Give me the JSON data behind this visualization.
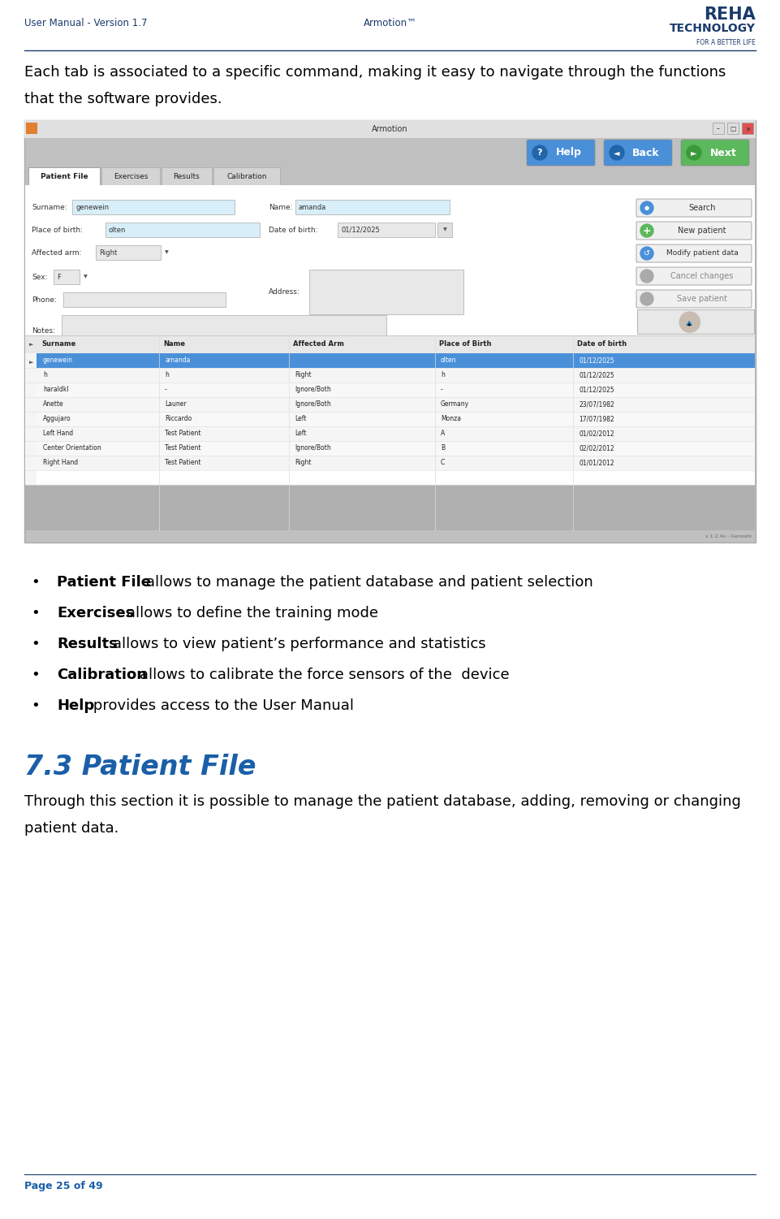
{
  "page_width": 9.61,
  "page_height": 15.01,
  "dpi": 100,
  "bg_color": "#ffffff",
  "header_left": "User Manual - Version 1.7",
  "header_center": "Armotion™",
  "header_color": "#1a3a6b",
  "logo_text1": "REHA",
  "logo_text2": "TECHNOLOGY",
  "logo_text3": "FOR A BETTER LIFE",
  "logo_color": "#1a3a6b",
  "body_text_line1": "Each tab is associated to a specific command, making it easy to navigate through the functions",
  "body_text_line2": "that the software provides.",
  "screenshot_label": "Armotion",
  "bullet_items": [
    {
      "bold": "Patient File",
      "rest": ": allows to manage the patient database and patient selection"
    },
    {
      "bold": "Exercises",
      "rest": ": allows to define the training mode"
    },
    {
      "bold": "Results",
      "rest": ": allows to view patient’s performance and statistics"
    },
    {
      "bold": "Calibration",
      "rest": ": allows to calibrate the force sensors of the  device"
    },
    {
      "bold": "Help",
      "rest": ": provides access to the User Manual"
    }
  ],
  "section_number": "7.3",
  "section_title": "Patient File",
  "section_color": "#1a5fa8",
  "section_text_line1": "Through this section it is possible to manage the patient database, adding, removing or changing",
  "section_text_line2": "patient data.",
  "footer_text": "Page 25 of 49",
  "footer_color": "#1a5fa8",
  "divider_color": "#1a3a6b",
  "text_color": "#000000",
  "body_fontsize": 13,
  "bullet_fontsize": 13,
  "section_header_fontsize": 24,
  "header_fontsize": 9,
  "footer_fontsize": 9,
  "screenshot_bg": "#c0c0c0",
  "screenshot_title_bar": "#e0e0e0",
  "screenshot_tab_active": "#ffffff",
  "screenshot_tab_inactive": "#d4d4d4",
  "screenshot_table_header_bg": "#e8e8e8",
  "screenshot_row_selected": "#4a90d9",
  "screenshot_row_alt": "#f8f8f8",
  "screenshot_form_bg": "#f5f5f5",
  "field_color": "#d8eef8",
  "field_color2": "#e8e8e8"
}
